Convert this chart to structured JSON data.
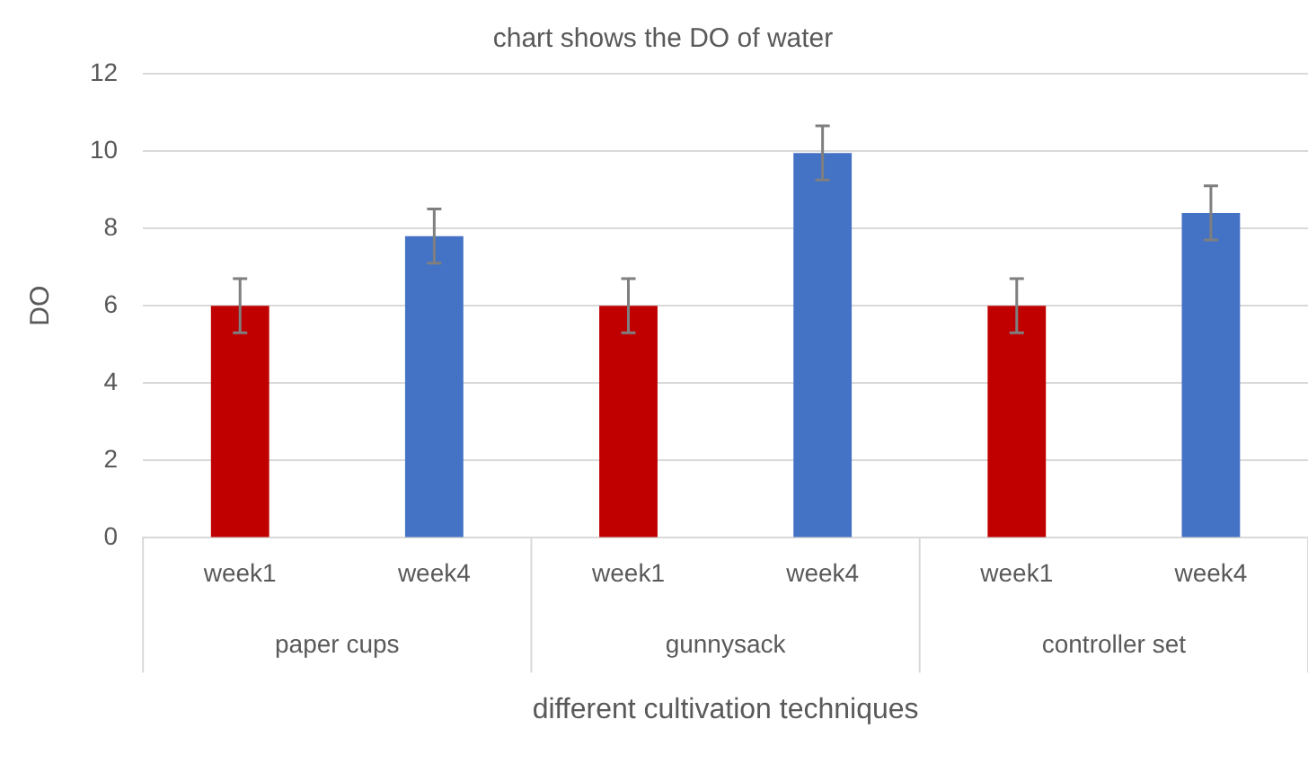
{
  "chart_data": {
    "type": "bar",
    "title": "chart shows the DO of water",
    "xlabel": "different cultivation techniques",
    "ylabel": "DO",
    "categories": [
      "week1",
      "week4",
      "week1",
      "week4",
      "week1",
      "week4"
    ],
    "values": [
      6,
      7.8,
      6,
      9.95,
      6,
      8.4
    ],
    "colors": [
      "#c00000",
      "#4472c4",
      "#c00000",
      "#4472c4",
      "#c00000",
      "#4472c4"
    ],
    "errors": [
      0.7,
      0.7,
      0.7,
      0.7,
      0.7,
      0.7
    ],
    "annotations": [
      "paper cups",
      "gunnysack",
      "controller set"
    ],
    "ylim": [
      0,
      12
    ],
    "yticks": [
      0,
      2,
      4,
      6,
      8,
      10,
      12
    ],
    "grid": "y",
    "legend": false
  }
}
